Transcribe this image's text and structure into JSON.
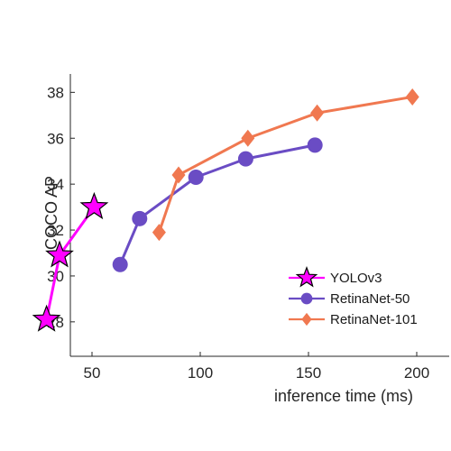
{
  "chart_data": {
    "type": "line",
    "title": "",
    "xlabel": "inference time (ms)",
    "ylabel": "COCO AP",
    "xlim": [
      40,
      215
    ],
    "ylim": [
      26.5,
      38.8
    ],
    "xticks": [
      50,
      100,
      150,
      200
    ],
    "yticks": [
      28,
      30,
      32,
      34,
      36,
      38
    ],
    "grid": false,
    "legend_position": "bottom-right",
    "series": [
      {
        "name": "YOLOv3",
        "marker": "star",
        "color": "#ff00ff",
        "points": [
          [
            29,
            28.1
          ],
          [
            35,
            30.9
          ],
          [
            51,
            33.0
          ]
        ]
      },
      {
        "name": "RetinaNet-50",
        "marker": "circle",
        "color": "#6a4cc4",
        "points": [
          [
            63,
            30.5
          ],
          [
            72,
            32.5
          ],
          [
            98,
            34.3
          ],
          [
            121,
            35.1
          ],
          [
            153,
            35.7
          ]
        ]
      },
      {
        "name": "RetinaNet-101",
        "marker": "diamond",
        "color": "#f07850",
        "points": [
          [
            81,
            31.9
          ],
          [
            90,
            34.4
          ],
          [
            122,
            36.0
          ],
          [
            154,
            37.1
          ],
          [
            198,
            37.8
          ]
        ]
      }
    ]
  }
}
